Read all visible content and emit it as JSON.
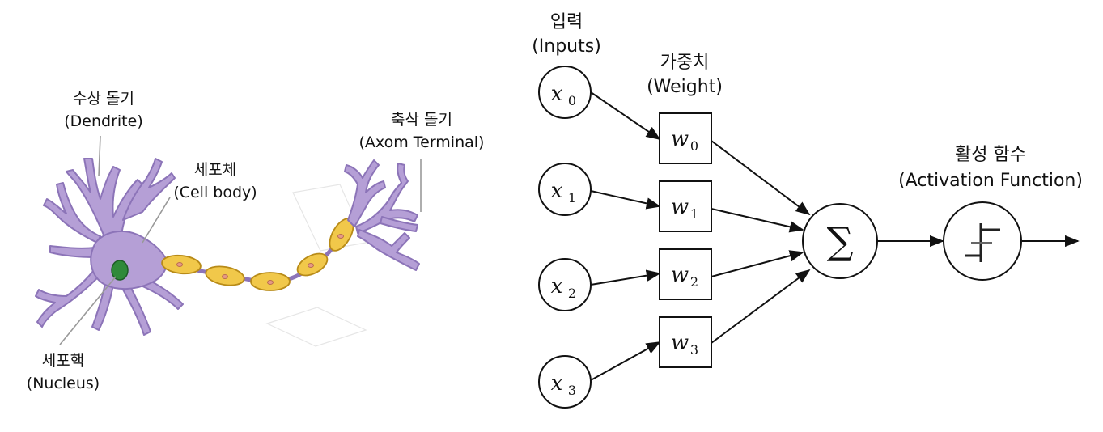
{
  "neuron": {
    "dendrite": {
      "ko": "수상 돌기",
      "en": "(Dendrite)"
    },
    "cell_body": {
      "ko": "세포체",
      "en": "(Cell body)"
    },
    "axon_terminal": {
      "ko": "축삭 돌기",
      "en": "(Axom Terminal)"
    },
    "nucleus": {
      "ko": "세포핵",
      "en": "(Nucleus)"
    },
    "colors": {
      "cell": "#b59fd6",
      "cell_stroke": "#8c74b8",
      "nucleus": "#2f8a3a",
      "myelin": "#f1c84a",
      "myelin_stroke": "#b88b18"
    }
  },
  "perceptron": {
    "inputs_header": {
      "ko": "입력",
      "en": "(Inputs)"
    },
    "weights_header": {
      "ko": "가중치",
      "en": "(Weight)"
    },
    "activation_header": {
      "ko": "활성 함수",
      "en": "(Activation Function)"
    },
    "inputs": [
      {
        "var": "x",
        "sub": "0"
      },
      {
        "var": "x",
        "sub": "1"
      },
      {
        "var": "x",
        "sub": "2"
      },
      {
        "var": "x",
        "sub": "3"
      }
    ],
    "weights": [
      {
        "var": "w",
        "sub": "0"
      },
      {
        "var": "w",
        "sub": "1"
      },
      {
        "var": "w",
        "sub": "2"
      },
      {
        "var": "w",
        "sub": "3"
      }
    ],
    "sum_symbol": "∑"
  }
}
